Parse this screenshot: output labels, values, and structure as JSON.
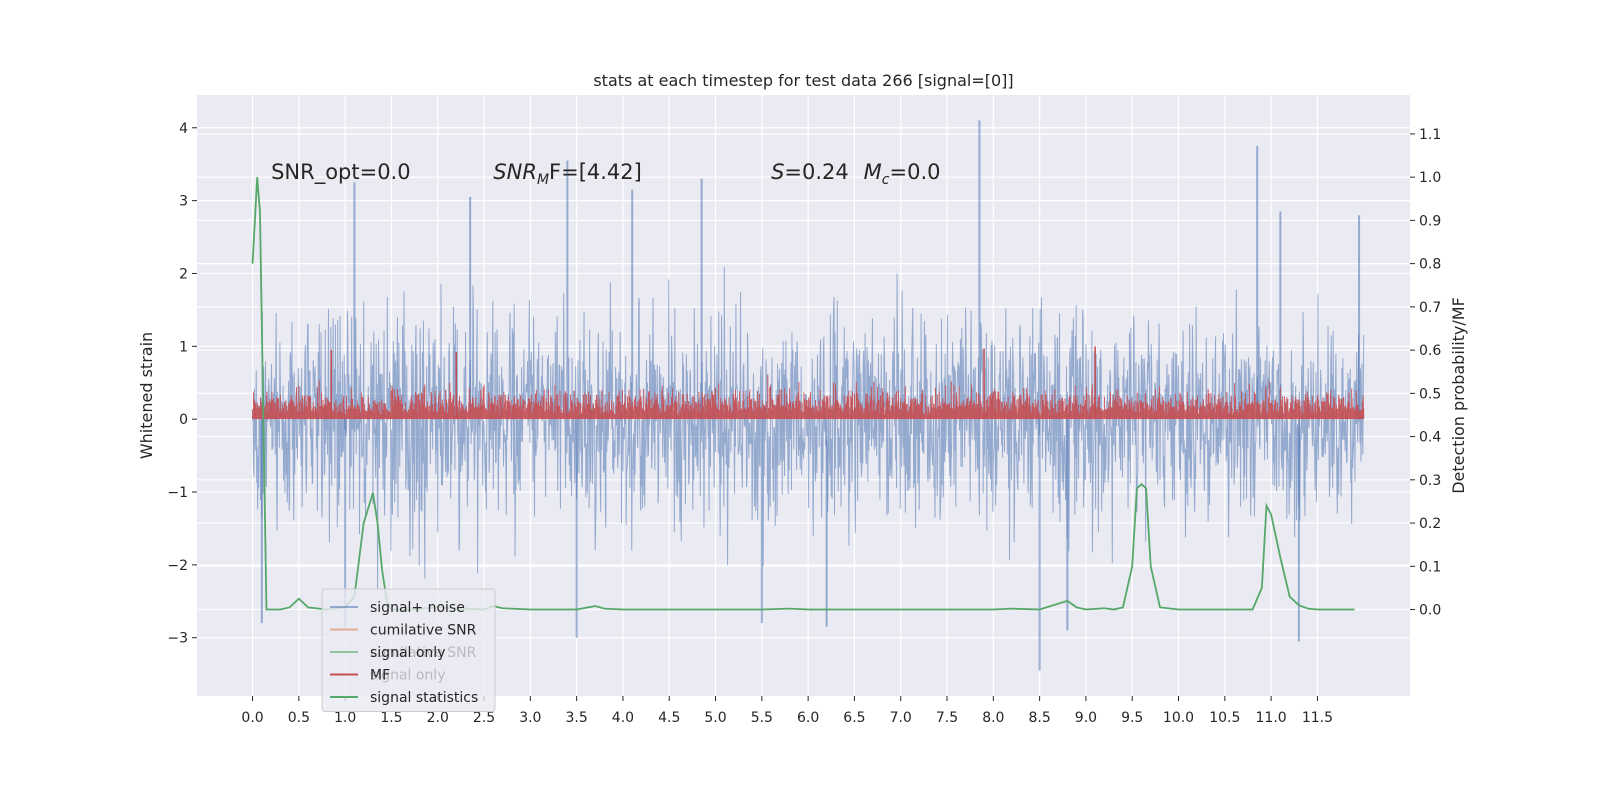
{
  "chart_data": {
    "type": "line",
    "title": "stats at each timestep for test data 266 [signal=[0]]",
    "ylabel_left": "Whitened strain",
    "ylabel_right": "Detection probability/MF",
    "xlim": [
      -0.6,
      12.5
    ],
    "ylim_left": [
      -3.8,
      4.45
    ],
    "ylim_right": [
      -0.2,
      1.19
    ],
    "x_ticks": [
      0.0,
      0.5,
      1.0,
      1.5,
      2.0,
      2.5,
      3.0,
      3.5,
      4.0,
      4.5,
      5.0,
      5.5,
      6.0,
      6.5,
      7.0,
      7.5,
      8.0,
      8.5,
      9.0,
      9.5,
      10.0,
      10.5,
      11.0,
      11.5
    ],
    "x_tick_labels": [
      "0.0",
      "0.5",
      "1.0",
      "1.5",
      "2.0",
      "2.5",
      "3.0",
      "3.5",
      "4.0",
      "4.5",
      "5.0",
      "5.5",
      "6.0",
      "6.5",
      "7.0",
      "7.5",
      "8.0",
      "8.5",
      "9.0",
      "9.5",
      "10.0",
      "10.5",
      "11.0",
      "11.5"
    ],
    "y_ticks_left": [
      -3,
      -2,
      -1,
      0,
      1,
      2,
      3,
      4
    ],
    "y_tick_labels_left": [
      "−3",
      "−2",
      "−1",
      "0",
      "1",
      "2",
      "3",
      "4"
    ],
    "y_ticks_right": [
      0.0,
      0.1,
      0.2,
      0.3,
      0.4,
      0.5,
      0.6,
      0.7,
      0.8,
      0.9,
      1.0,
      1.1
    ],
    "y_tick_labels_right": [
      "0.0",
      "0.1",
      "0.2",
      "0.3",
      "0.4",
      "0.5",
      "0.6",
      "0.7",
      "0.8",
      "0.9",
      "1.0",
      "1.1"
    ],
    "annotations": [
      {
        "text": "SNR_opt=0.0",
        "x": 0.2,
        "y": 3.3,
        "italic": false
      },
      {
        "text": "SNR",
        "sub": "M",
        "tail": "F=[4.42]",
        "x": 2.6,
        "y": 3.3,
        "italic": true
      },
      {
        "text": "S",
        "tail": "=0.24",
        "x": 5.6,
        "y": 3.3,
        "italic": true
      },
      {
        "text": "M",
        "sub": "c",
        "tail": "=0.0",
        "x": 6.6,
        "y": 3.3,
        "italic": true
      }
    ],
    "legend": {
      "placement": "lower-left",
      "entries": [
        {
          "label": "signal+ noise",
          "color": "#4c72b0",
          "alpha": 0.55
        },
        {
          "label": "cumilative SNR",
          "color": "#dd8452",
          "alpha": 0.6
        },
        {
          "label": "signal only",
          "color": "#55a868",
          "alpha": 0.6
        },
        {
          "label": "MF",
          "color": "#c44e52",
          "alpha": 1.0
        },
        {
          "label": "signal statistics",
          "color": "#55a868",
          "alpha": 1.0
        }
      ],
      "ghost_labels": [
        "cumilative SNR",
        "signal only"
      ]
    },
    "series": [
      {
        "name": "signal+ noise",
        "axis": "left",
        "color": "#4c72b0",
        "x_range": [
          0.0,
          12.0
        ],
        "envelope_typical": [
          -1.8,
          2.0
        ],
        "peaks_high": [
          [
            1.1,
            3.25
          ],
          [
            2.35,
            3.05
          ],
          [
            3.4,
            3.55
          ],
          [
            4.1,
            3.15
          ],
          [
            4.85,
            3.3
          ],
          [
            7.85,
            4.1
          ],
          [
            10.85,
            3.75
          ],
          [
            11.1,
            2.85
          ],
          [
            11.95,
            2.8
          ]
        ],
        "peaks_low": [
          [
            0.1,
            -2.8
          ],
          [
            1.0,
            -2.85
          ],
          [
            3.5,
            -3.0
          ],
          [
            5.5,
            -2.8
          ],
          [
            6.2,
            -2.85
          ],
          [
            8.5,
            -3.45
          ],
          [
            8.8,
            -2.9
          ],
          [
            11.3,
            -3.05
          ]
        ]
      },
      {
        "name": "MF",
        "axis": "left",
        "color": "#c44e52",
        "x_range": [
          0.0,
          12.0
        ],
        "baseline": 0.0,
        "band_typical": [
          0.08,
          0.55
        ],
        "peaks_high": [
          [
            0.85,
            0.95
          ],
          [
            2.2,
            0.92
          ],
          [
            7.9,
            0.97
          ],
          [
            9.1,
            1.0
          ]
        ]
      },
      {
        "name": "signal statistics",
        "axis": "right",
        "color": "#55a868",
        "x": [
          0.0,
          0.05,
          0.08,
          0.12,
          0.15,
          0.2,
          0.3,
          0.4,
          0.5,
          0.6,
          0.8,
          1.0,
          1.1,
          1.2,
          1.3,
          1.35,
          1.4,
          1.45,
          1.5,
          1.7,
          2.0,
          2.5,
          2.6,
          2.7,
          3.0,
          3.5,
          3.7,
          3.8,
          4.0,
          5.0,
          5.5,
          5.8,
          6.0,
          6.5,
          7.0,
          7.5,
          8.0,
          8.2,
          8.5,
          8.8,
          8.9,
          9.0,
          9.2,
          9.3,
          9.4,
          9.5,
          9.55,
          9.6,
          9.65,
          9.7,
          9.8,
          10.0,
          10.5,
          10.8,
          10.9,
          10.95,
          11.0,
          11.1,
          11.2,
          11.3,
          11.4,
          11.5,
          11.9
        ],
        "y": [
          0.8,
          1.0,
          0.92,
          0.4,
          0.0,
          0.0,
          0.0,
          0.005,
          0.025,
          0.005,
          0.0,
          0.005,
          0.03,
          0.2,
          0.27,
          0.2,
          0.09,
          0.02,
          0.0,
          0.0,
          0.005,
          0.0,
          0.008,
          0.003,
          0.0,
          0.0,
          0.008,
          0.002,
          0.0,
          0.0,
          0.0,
          0.002,
          0.0,
          0.0,
          0.0,
          0.0,
          0.0,
          0.002,
          0.0,
          0.02,
          0.005,
          0.0,
          0.003,
          0.0,
          0.005,
          0.1,
          0.28,
          0.29,
          0.28,
          0.1,
          0.005,
          0.0,
          0.0,
          0.0,
          0.05,
          0.24,
          0.22,
          0.12,
          0.03,
          0.01,
          0.002,
          0.0,
          0.0
        ]
      }
    ]
  }
}
